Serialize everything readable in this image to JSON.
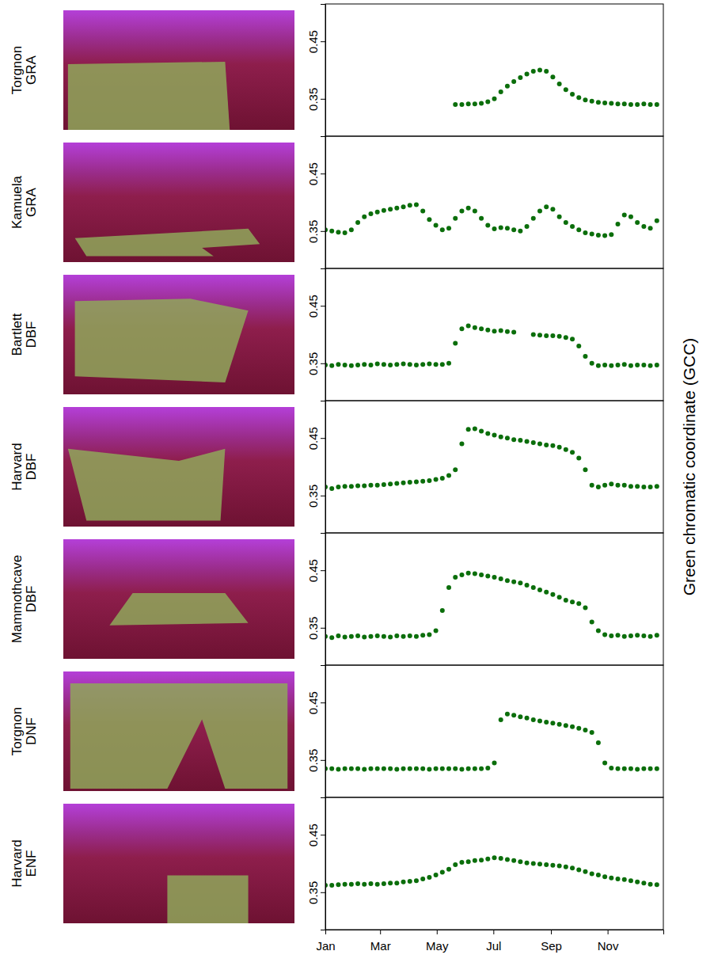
{
  "chart_data": [
    {
      "type": "scatter",
      "title": "Torgnon GRA",
      "color": "#0b6e0b",
      "marker": "circle",
      "tick_labels": "y",
      "xlim": [
        1,
        365
      ],
      "ylim": [
        0.285,
        0.515
      ],
      "yticks": [
        0.35,
        0.45
      ],
      "x": [
        1,
        8,
        15,
        22,
        29,
        36,
        43,
        50,
        57,
        64,
        71,
        78,
        85,
        92,
        99,
        106,
        113,
        120,
        127,
        134,
        141,
        148,
        155,
        162,
        169,
        176,
        183,
        190,
        197,
        204,
        211,
        218,
        225,
        232,
        239,
        246,
        253,
        260,
        267,
        274,
        281,
        288,
        295,
        302,
        309,
        316,
        323,
        330,
        337,
        344,
        351,
        358
      ],
      "values": [
        null,
        null,
        null,
        null,
        null,
        null,
        null,
        null,
        null,
        null,
        null,
        null,
        null,
        null,
        null,
        null,
        null,
        null,
        null,
        null,
        0.34,
        0.34,
        0.341,
        0.341,
        0.342,
        0.345,
        0.35,
        0.362,
        0.372,
        0.38,
        0.387,
        0.393,
        0.398,
        0.4,
        0.398,
        0.388,
        0.376,
        0.366,
        0.358,
        0.352,
        0.348,
        0.346,
        0.344,
        0.343,
        0.342,
        0.341,
        0.341,
        0.34,
        0.34,
        0.341,
        0.34,
        0.34
      ]
    },
    {
      "type": "scatter",
      "title": "Kamuela GRA",
      "color": "#0b6e0b",
      "marker": "circle",
      "tick_labels": "y",
      "xlim": [
        1,
        365
      ],
      "ylim": [
        0.285,
        0.515
      ],
      "yticks": [
        0.35,
        0.45
      ],
      "x": [
        1,
        8,
        15,
        22,
        29,
        36,
        43,
        50,
        57,
        64,
        71,
        78,
        85,
        92,
        99,
        106,
        113,
        120,
        127,
        134,
        141,
        148,
        155,
        162,
        169,
        176,
        183,
        190,
        197,
        204,
        211,
        218,
        225,
        232,
        239,
        246,
        253,
        260,
        267,
        274,
        281,
        288,
        295,
        302,
        309,
        316,
        323,
        330,
        337,
        344,
        351,
        358
      ],
      "values": [
        0.352,
        0.35,
        0.348,
        0.347,
        0.352,
        0.365,
        0.375,
        0.38,
        0.383,
        0.386,
        0.388,
        0.39,
        0.392,
        0.395,
        0.396,
        0.385,
        0.37,
        0.36,
        0.352,
        0.355,
        0.372,
        0.385,
        0.39,
        0.385,
        0.372,
        0.36,
        0.354,
        0.356,
        0.355,
        0.352,
        0.35,
        0.358,
        0.372,
        0.385,
        0.392,
        0.388,
        0.375,
        0.365,
        0.358,
        0.352,
        0.347,
        0.345,
        0.343,
        0.342,
        0.344,
        0.362,
        0.378,
        0.375,
        0.365,
        0.358,
        0.355,
        0.368
      ]
    },
    {
      "type": "scatter",
      "title": "Bartlett DBF",
      "color": "#0b6e0b",
      "marker": "circle",
      "tick_labels": "y",
      "xlim": [
        1,
        365
      ],
      "ylim": [
        0.285,
        0.515
      ],
      "yticks": [
        0.35,
        0.45
      ],
      "x": [
        1,
        8,
        15,
        22,
        29,
        36,
        43,
        50,
        57,
        64,
        71,
        78,
        85,
        92,
        99,
        106,
        113,
        120,
        127,
        134,
        141,
        148,
        155,
        162,
        169,
        176,
        183,
        190,
        197,
        204,
        211,
        218,
        225,
        232,
        239,
        246,
        253,
        260,
        267,
        274,
        281,
        288,
        295,
        302,
        309,
        316,
        323,
        330,
        337,
        344,
        351,
        358
      ],
      "values": [
        0.347,
        0.346,
        0.348,
        0.347,
        0.346,
        0.347,
        0.348,
        0.347,
        0.349,
        0.348,
        0.347,
        0.348,
        0.349,
        0.348,
        0.347,
        0.348,
        0.349,
        0.348,
        0.348,
        0.35,
        0.385,
        0.41,
        0.415,
        0.412,
        0.41,
        0.408,
        0.406,
        0.407,
        0.405,
        0.404,
        null,
        null,
        0.4,
        0.399,
        0.398,
        0.398,
        0.397,
        0.395,
        0.392,
        0.38,
        0.362,
        0.35,
        0.346,
        0.347,
        0.346,
        0.347,
        0.348,
        0.346,
        0.347,
        0.347,
        0.346,
        0.347
      ]
    },
    {
      "type": "scatter",
      "title": "Harvard DBF",
      "color": "#0b6e0b",
      "marker": "circle",
      "tick_labels": "y",
      "ylabel": "Green chromatic coordinate (GCC)",
      "xlim": [
        1,
        365
      ],
      "ylim": [
        0.285,
        0.515
      ],
      "yticks": [
        0.35,
        0.45
      ],
      "x": [
        1,
        8,
        15,
        22,
        29,
        36,
        43,
        50,
        57,
        64,
        71,
        78,
        85,
        92,
        99,
        106,
        113,
        120,
        127,
        134,
        141,
        148,
        155,
        162,
        169,
        176,
        183,
        190,
        197,
        204,
        211,
        218,
        225,
        232,
        239,
        246,
        253,
        260,
        267,
        274,
        281,
        288,
        295,
        302,
        309,
        316,
        323,
        330,
        337,
        344,
        351,
        358
      ],
      "values": [
        0.365,
        0.362,
        0.365,
        0.366,
        0.366,
        0.367,
        0.367,
        0.368,
        0.368,
        0.369,
        0.37,
        0.371,
        0.372,
        0.373,
        0.374,
        0.375,
        0.376,
        0.378,
        0.38,
        0.385,
        0.395,
        0.44,
        0.465,
        0.466,
        0.462,
        0.458,
        0.455,
        0.452,
        0.45,
        0.447,
        0.446,
        0.444,
        0.442,
        0.44,
        0.438,
        0.437,
        0.434,
        0.43,
        0.425,
        0.415,
        0.395,
        0.368,
        0.365,
        0.368,
        0.37,
        0.368,
        0.368,
        0.366,
        0.366,
        0.365,
        0.365,
        0.366
      ]
    },
    {
      "type": "scatter",
      "title": "Mammothcave DBF",
      "color": "#0b6e0b",
      "marker": "circle",
      "tick_labels": "y",
      "xlim": [
        1,
        365
      ],
      "ylim": [
        0.285,
        0.515
      ],
      "yticks": [
        0.35,
        0.45
      ],
      "x": [
        1,
        8,
        15,
        22,
        29,
        36,
        43,
        50,
        57,
        64,
        71,
        78,
        85,
        92,
        99,
        106,
        113,
        120,
        127,
        134,
        141,
        148,
        155,
        162,
        169,
        176,
        183,
        190,
        197,
        204,
        211,
        218,
        225,
        232,
        239,
        246,
        253,
        260,
        267,
        274,
        281,
        288,
        295,
        302,
        309,
        316,
        323,
        330,
        337,
        344,
        351,
        358
      ],
      "values": [
        0.335,
        0.333,
        0.336,
        0.334,
        0.335,
        0.336,
        0.334,
        0.335,
        0.336,
        0.335,
        0.334,
        0.336,
        0.335,
        0.336,
        0.335,
        0.337,
        0.338,
        0.345,
        0.38,
        0.42,
        0.438,
        0.442,
        0.445,
        0.444,
        0.442,
        0.44,
        0.438,
        0.435,
        0.432,
        0.43,
        0.428,
        0.424,
        0.42,
        0.416,
        0.412,
        0.408,
        0.403,
        0.398,
        0.395,
        0.392,
        0.385,
        0.36,
        0.345,
        0.338,
        0.336,
        0.337,
        0.335,
        0.336,
        0.337,
        0.336,
        0.335,
        0.337
      ]
    },
    {
      "type": "scatter",
      "title": "Torgnon DNF",
      "color": "#0b6e0b",
      "marker": "circle",
      "tick_labels": "y",
      "xlim": [
        1,
        365
      ],
      "ylim": [
        0.285,
        0.515
      ],
      "yticks": [
        0.35,
        0.45
      ],
      "x": [
        1,
        8,
        15,
        22,
        29,
        36,
        43,
        50,
        57,
        64,
        71,
        78,
        85,
        92,
        99,
        106,
        113,
        120,
        127,
        134,
        141,
        148,
        155,
        162,
        169,
        176,
        183,
        190,
        197,
        204,
        211,
        218,
        225,
        232,
        239,
        246,
        253,
        260,
        267,
        274,
        281,
        288,
        295,
        302,
        309,
        316,
        323,
        330,
        337,
        344,
        351,
        358
      ],
      "values": [
        0.335,
        0.335,
        0.334,
        0.335,
        0.335,
        0.335,
        0.334,
        0.335,
        0.335,
        0.335,
        0.335,
        0.334,
        0.335,
        0.335,
        0.335,
        0.335,
        0.334,
        0.335,
        0.335,
        0.335,
        0.335,
        0.334,
        0.335,
        0.335,
        0.335,
        0.336,
        0.345,
        0.42,
        0.43,
        0.428,
        0.425,
        0.423,
        0.42,
        0.418,
        0.416,
        0.414,
        0.412,
        0.41,
        0.408,
        0.405,
        0.402,
        0.398,
        0.38,
        0.345,
        0.336,
        0.335,
        0.335,
        0.335,
        0.334,
        0.335,
        0.335,
        0.335
      ]
    },
    {
      "type": "scatter",
      "title": "Harvard ENF",
      "color": "#0b6e0b",
      "marker": "circle",
      "xlim": [
        1,
        365
      ],
      "ylim": [
        0.285,
        0.515
      ],
      "yticks": [
        0.35,
        0.45
      ],
      "xticks": [
        {
          "value": 1,
          "label": "Jan"
        },
        {
          "value": 60,
          "label": "Mar"
        },
        {
          "value": 121,
          "label": "May"
        },
        {
          "value": 182,
          "label": "Jul"
        },
        {
          "value": 244,
          "label": "Sep"
        },
        {
          "value": 305,
          "label": "Nov"
        }
      ],
      "x": [
        1,
        8,
        15,
        22,
        29,
        36,
        43,
        50,
        57,
        64,
        71,
        78,
        85,
        92,
        99,
        106,
        113,
        120,
        127,
        134,
        141,
        148,
        155,
        162,
        169,
        176,
        183,
        190,
        197,
        204,
        211,
        218,
        225,
        232,
        239,
        246,
        253,
        260,
        267,
        274,
        281,
        288,
        295,
        302,
        309,
        316,
        323,
        330,
        337,
        344,
        351,
        358
      ],
      "values": [
        0.362,
        0.362,
        0.363,
        0.364,
        0.364,
        0.365,
        0.364,
        0.365,
        0.364,
        0.365,
        0.366,
        0.366,
        0.368,
        0.369,
        0.37,
        0.373,
        0.376,
        0.38,
        0.385,
        0.39,
        0.398,
        0.402,
        0.403,
        0.405,
        0.406,
        0.408,
        0.41,
        0.409,
        0.407,
        0.405,
        0.403,
        0.401,
        0.4,
        0.399,
        0.398,
        0.397,
        0.396,
        0.394,
        0.392,
        0.389,
        0.386,
        0.382,
        0.38,
        0.377,
        0.375,
        0.373,
        0.372,
        0.37,
        0.368,
        0.366,
        0.364,
        0.363
      ]
    }
  ]
}
